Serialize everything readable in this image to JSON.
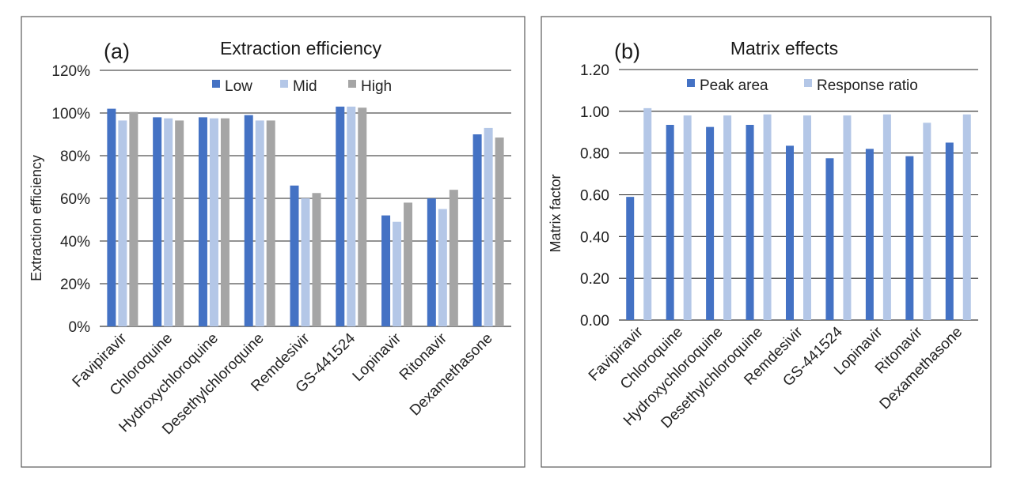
{
  "chart_data": [
    {
      "type": "bar",
      "panel_label": "(a)",
      "title": "Extraction efficiency",
      "xlabel": "",
      "ylabel": "Extraction efficiency",
      "ylim": [
        0,
        1.2
      ],
      "yticks": [
        0,
        0.2,
        0.4,
        0.6,
        0.8,
        1.0,
        1.2
      ],
      "ytick_labels": [
        "0%",
        "20%",
        "40%",
        "60%",
        "80%",
        "100%",
        "120%"
      ],
      "grid": true,
      "legend_position": "top",
      "categories": [
        "Favipiravir",
        "Chloroquine",
        "Hydroxychloroquine",
        "Desethylchloroquine",
        "Remdesivir",
        "GS-441524",
        "Lopinavir",
        "Ritonavir",
        "Dexamethasone"
      ],
      "series": [
        {
          "name": "Low",
          "color": "#4472c4",
          "values": [
            1.02,
            0.98,
            0.98,
            0.99,
            0.66,
            1.03,
            0.52,
            0.6,
            0.9
          ]
        },
        {
          "name": "Mid",
          "color": "#b4c7e7",
          "values": [
            0.965,
            0.975,
            0.975,
            0.965,
            0.6,
            1.03,
            0.49,
            0.55,
            0.93
          ]
        },
        {
          "name": "High",
          "color": "#a5a5a5",
          "values": [
            1.005,
            0.965,
            0.975,
            0.965,
            0.625,
            1.025,
            0.58,
            0.64,
            0.885
          ]
        }
      ]
    },
    {
      "type": "bar",
      "panel_label": "(b)",
      "title": "Matrix effects",
      "xlabel": "",
      "ylabel": "Matrix factor",
      "ylim": [
        0,
        1.2
      ],
      "yticks": [
        0,
        0.2,
        0.4,
        0.6,
        0.8,
        1.0,
        1.2
      ],
      "ytick_labels": [
        "0.00",
        "0.20",
        "0.40",
        "0.60",
        "0.80",
        "1.00",
        "1.20"
      ],
      "grid": true,
      "legend_position": "top",
      "categories": [
        "Favipiravir",
        "Chloroquine",
        "Hydroxychloroquine",
        "Desethylchloroquine",
        "Remdesivir",
        "GS-441524",
        "Lopinavir",
        "Ritonavir",
        "Dexamethasone"
      ],
      "series": [
        {
          "name": "Peak area",
          "color": "#4472c4",
          "values": [
            0.59,
            0.935,
            0.925,
            0.935,
            0.835,
            0.775,
            0.82,
            0.785,
            0.85
          ]
        },
        {
          "name": "Response ratio",
          "color": "#b4c7e7",
          "values": [
            1.015,
            0.98,
            0.98,
            0.985,
            0.98,
            0.98,
            0.985,
            0.945,
            0.985
          ]
        }
      ]
    }
  ]
}
